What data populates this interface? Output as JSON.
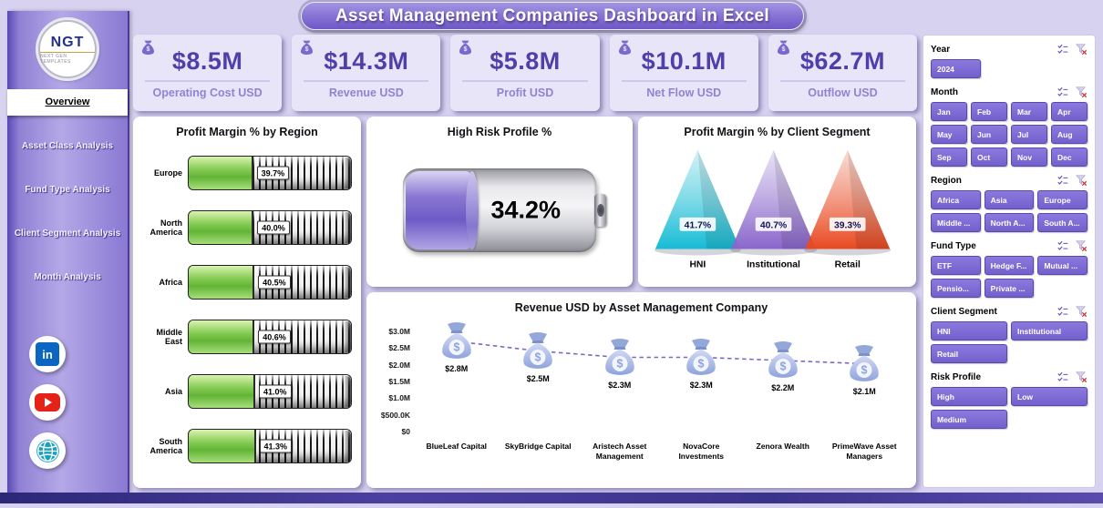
{
  "title": "Asset Management Companies Dashboard in Excel",
  "sidebar": {
    "logo_text": "NGT",
    "logo_subtext": "NEXT GEN TEMPLATES",
    "nav_items": [
      {
        "label": "Overview",
        "active": true
      },
      {
        "label": "Asset Class Analysis",
        "active": false
      },
      {
        "label": "Fund Type Analysis",
        "active": false
      },
      {
        "label": "Client Segment Analysis",
        "active": false
      },
      {
        "label": "Month Analysis",
        "active": false
      }
    ],
    "social_icons": [
      "linkedin-icon",
      "youtube-icon",
      "website-icon"
    ]
  },
  "kpis": [
    {
      "value": "$8.5M",
      "label": "Operating Cost USD",
      "icon": "operating-cost-icon"
    },
    {
      "value": "$14.3M",
      "label": "Revenue USD",
      "icon": "revenue-icon"
    },
    {
      "value": "$5.8M",
      "label": "Profit USD",
      "icon": "profit-icon"
    },
    {
      "value": "$10.1M",
      "label": "Net Flow USD",
      "icon": "net-flow-icon"
    },
    {
      "value": "$62.7M",
      "label": "Outflow USD",
      "icon": "outflow-icon"
    }
  ],
  "chart_data": [
    {
      "type": "bar",
      "title": "Profit Margin % by Region",
      "orientation": "horizontal",
      "categories": [
        "Europe",
        "North America",
        "Africa",
        "Middle East",
        "Asia",
        "South America"
      ],
      "values": [
        39.7,
        40.0,
        40.5,
        40.6,
        41.0,
        41.3
      ],
      "value_labels": [
        "39.7%",
        "40.0%",
        "40.5%",
        "40.6%",
        "41.0%",
        "41.3%"
      ],
      "xlim": [
        0,
        100
      ],
      "bar_color": "#6fbe3e"
    },
    {
      "type": "gauge",
      "title": "High Risk Profile %",
      "value": 34.2,
      "value_label": "34.2%",
      "max": 100,
      "fill_color": "#7a66cc"
    },
    {
      "type": "pyramid",
      "title": "Profit Margin % by Client Segment",
      "categories": [
        "HNI",
        "Institutional",
        "Retail"
      ],
      "values": [
        41.7,
        40.7,
        39.3
      ],
      "value_labels": [
        "41.7%",
        "40.7%",
        "39.3%"
      ],
      "colors": [
        "#17bcd5",
        "#8a66cc",
        "#e84a22"
      ]
    },
    {
      "type": "pictorial-line",
      "title": "Revenue USD by Asset Management Company",
      "categories": [
        "BlueLeaf Capital",
        "SkyBridge Capital",
        "Aristech Asset Management",
        "NovaCore Investments",
        "Zenora Wealth",
        "PrimeWave Asset Managers"
      ],
      "values_musd": [
        2.8,
        2.5,
        2.3,
        2.3,
        2.2,
        2.1
      ],
      "value_labels": [
        "$2.8M",
        "$2.5M",
        "$2.3M",
        "$2.3M",
        "$2.2M",
        "$2.1M"
      ],
      "y_ticks": [
        "$3.0M",
        "$2.5M",
        "$2.0M",
        "$1.5M",
        "$1.0M",
        "$500.0K",
        "$0"
      ],
      "ylim_musd": [
        0,
        3
      ],
      "marker": "money-bag-icon",
      "line_color": "#7a68c8",
      "legend": "none"
    }
  ],
  "slicers": [
    {
      "label": "Year",
      "cols": 3,
      "options": [
        "2024"
      ]
    },
    {
      "label": "Month",
      "cols": 4,
      "options": [
        "Jan",
        "Feb",
        "Mar",
        "Apr",
        "May",
        "Jun",
        "Jul",
        "Aug",
        "Sep",
        "Oct",
        "Nov",
        "Dec"
      ]
    },
    {
      "label": "Region",
      "cols": 3,
      "options": [
        "Africa",
        "Asia",
        "Europe",
        "Middle ...",
        "North A...",
        "South A..."
      ]
    },
    {
      "label": "Fund Type",
      "cols": 3,
      "options": [
        "ETF",
        "Hedge F...",
        "Mutual ...",
        "Pensio...",
        "Private ..."
      ]
    },
    {
      "label": "Client Segment",
      "cols": 2,
      "options": [
        "HNI",
        "Institutional",
        "Retail"
      ]
    },
    {
      "label": "Risk Profile",
      "cols": 2,
      "options": [
        "High",
        "Low",
        "Medium"
      ]
    }
  ],
  "colors": {
    "accent": "#7a66cc",
    "kpi_value_color": "#4f3fa8",
    "kpi_label_color": "#9084d0",
    "background": "#d8d2f1",
    "slicer_button": "#7a66cc"
  }
}
